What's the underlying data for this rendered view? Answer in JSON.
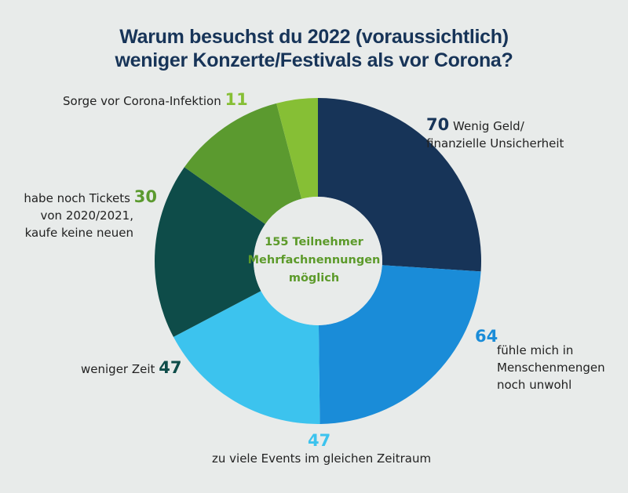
{
  "title_line1": "Warum besuchst du 2022 (voraussichtlich)",
  "title_line2": "weniger Konzerte/Festivals als vor Corona?",
  "center": {
    "line1": "155 Teilnehmer",
    "line2": "Mehrfachnennungen",
    "line3": "möglich"
  },
  "colors": {
    "wenig_geld": "#173458",
    "menschenmengen": "#1a8cd8",
    "zu_viele_events": "#3cc3ee",
    "weniger_zeit": "#0e4c49",
    "tickets": "#5b9a2f",
    "corona": "#86bf35",
    "title": "#173458"
  },
  "chart_data": {
    "type": "pie",
    "title": "Warum besuchst du 2022 (voraussichtlich) weniger Konzerte/Festivals als vor Corona?",
    "slices": [
      {
        "label": "Wenig Geld/ finanzielle Unsicherheit",
        "value": 70
      },
      {
        "label": "fühle mich in Menschenmengen noch unwohl",
        "value": 64
      },
      {
        "label": "zu viele Events im gleichen Zeitraum",
        "value": 47
      },
      {
        "label": "weniger Zeit",
        "value": 47
      },
      {
        "label": "habe noch Tickets von 2020/2021, kaufe keine neuen",
        "value": 30
      },
      {
        "label": "Sorge vor Corona-Infektion",
        "value": 11
      }
    ],
    "labels": {
      "wenig_geld": {
        "value": "70",
        "line1": "Wenig Geld/",
        "line2": "finanzielle Unsicherheit"
      },
      "menschenmengen": {
        "value": "64",
        "line1": "fühle mich in",
        "line2": "Menschenmengen",
        "line3": "noch unwohl"
      },
      "zu_viele_events": {
        "value": "47",
        "line1": "zu viele Events im gleichen Zeitraum"
      },
      "weniger_zeit": {
        "value": "47",
        "line1": "weniger Zeit"
      },
      "tickets": {
        "value": "30",
        "line1": "habe noch Tickets",
        "line2": "von 2020/2021,",
        "line3": "kaufe keine neuen"
      },
      "corona": {
        "value": "11",
        "line1": "Sorge vor Corona-Infektion"
      }
    }
  }
}
